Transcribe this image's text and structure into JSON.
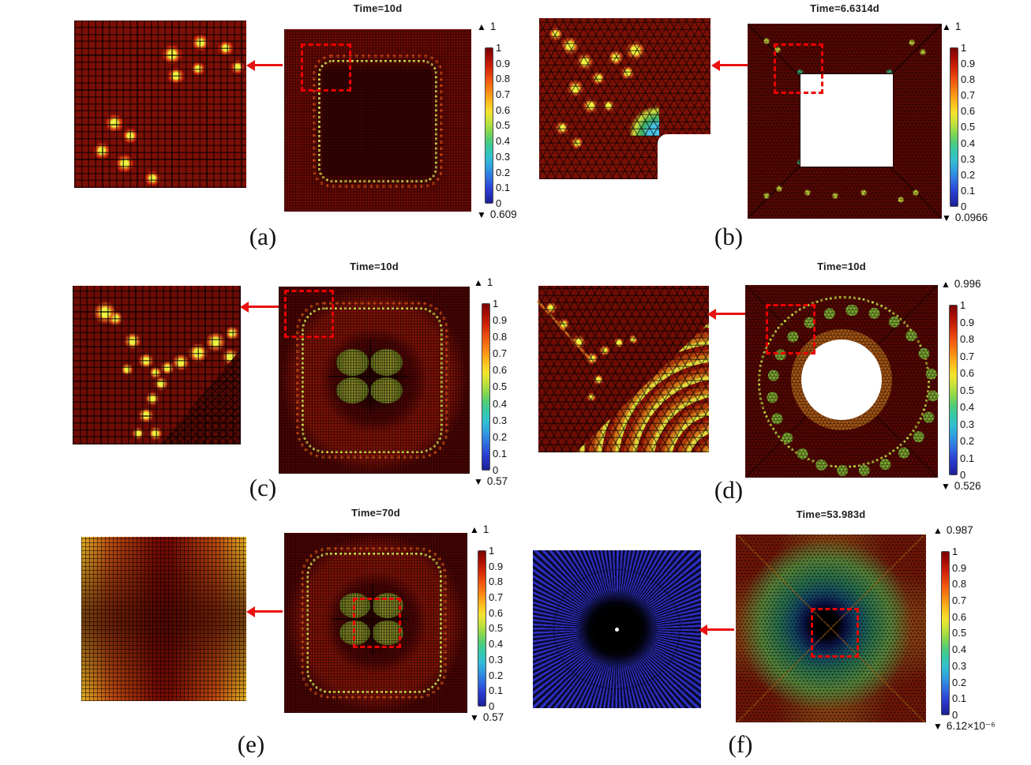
{
  "figure": {
    "description": "Six-panel finite element damage-field simulation figure, each panel with a mesh zoom inset, arrow, main field plot, and rainbow colorbar"
  },
  "icons": {
    "max_marker": "▲",
    "min_marker": "▼"
  },
  "colors": {
    "arrow": "#e91111",
    "zoom_box": "#ee0000",
    "colorbar_top": "#7a0403",
    "colorbar_bottom": "#1c1f96"
  },
  "colorbar_ticks": [
    "1",
    "0.9",
    "0.8",
    "0.7",
    "0.6",
    "0.5",
    "0.4",
    "0.3",
    "0.2",
    "0.1",
    "0"
  ],
  "panels": {
    "a": {
      "label": "(a)",
      "title": "Time=10d",
      "colorbar": {
        "max": "1",
        "min": "0.609"
      }
    },
    "b": {
      "label": "(b)",
      "title": "Time=6.6314d",
      "colorbar": {
        "max": "1",
        "min": "0.0966"
      }
    },
    "c": {
      "label": "(c)",
      "title": "Time=10d",
      "colorbar": {
        "max": "1",
        "min": "0.57"
      }
    },
    "d": {
      "label": "(d)",
      "title": "Time=10d",
      "colorbar": {
        "max": "0.996",
        "min": "0.526"
      }
    },
    "e": {
      "label": "(e)",
      "title": "Time=70d",
      "colorbar": {
        "max": "1",
        "min": "0.57"
      }
    },
    "f": {
      "label": "(f)",
      "title": "Time=53.983d",
      "colorbar": {
        "max": "0.987",
        "min": "6.12×10⁻⁶"
      }
    }
  }
}
